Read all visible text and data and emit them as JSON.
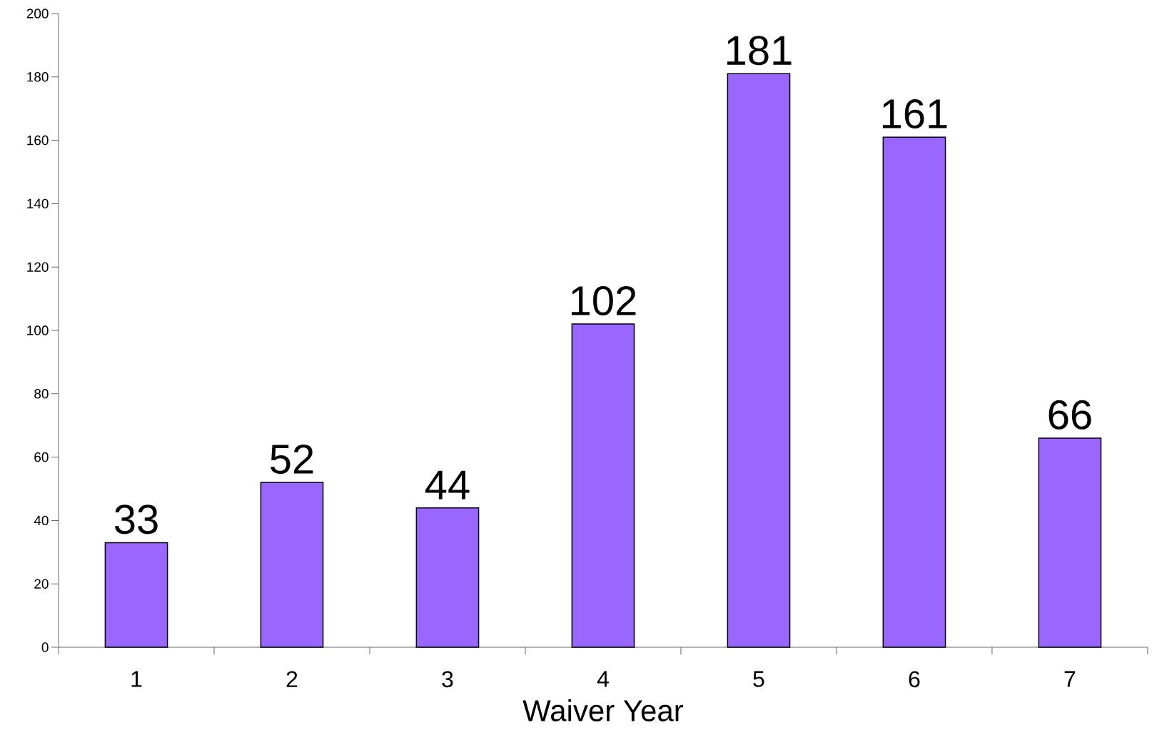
{
  "chart_data": {
    "type": "bar",
    "xlabel": "Waiver Year",
    "categories": [
      "1",
      "2",
      "3",
      "4",
      "5",
      "6",
      "7"
    ],
    "values": [
      33,
      52,
      44,
      102,
      181,
      161,
      66
    ],
    "color": "#9966ff",
    "ylim": [
      0,
      200
    ],
    "yticks": [
      0,
      20,
      40,
      60,
      80,
      100,
      120,
      140,
      160,
      180,
      200
    ],
    "data_labels": true,
    "grid": false
  }
}
